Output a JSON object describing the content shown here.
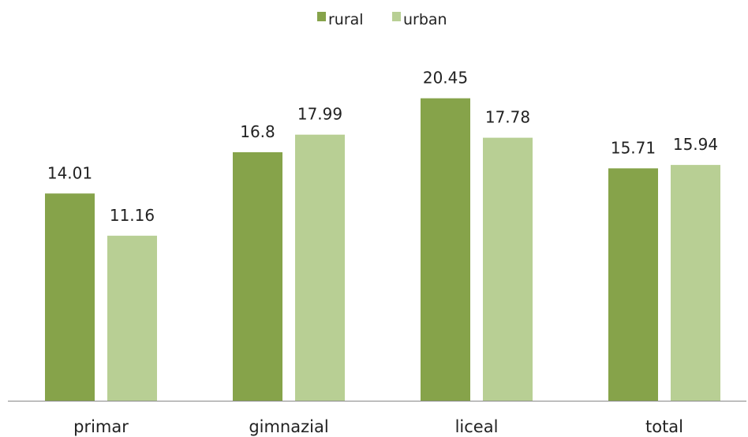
{
  "chart_data": {
    "type": "bar",
    "categories": [
      "primar",
      "gimnazial",
      "liceal",
      "total"
    ],
    "series": [
      {
        "name": "rural",
        "color": "#86a34a",
        "values": [
          14.01,
          16.8,
          20.45,
          15.71
        ]
      },
      {
        "name": "urban",
        "color": "#b8cf94",
        "values": [
          11.16,
          17.99,
          17.78,
          15.94
        ]
      }
    ],
    "value_labels": [
      [
        "14.01",
        "16.8",
        "20.45",
        "15.71"
      ],
      [
        "11.16",
        "17.99",
        "17.78",
        "15.94"
      ]
    ],
    "ylim": [
      0,
      22
    ],
    "grid": false,
    "legend_position": "top-center",
    "axis_color": "#888888"
  }
}
